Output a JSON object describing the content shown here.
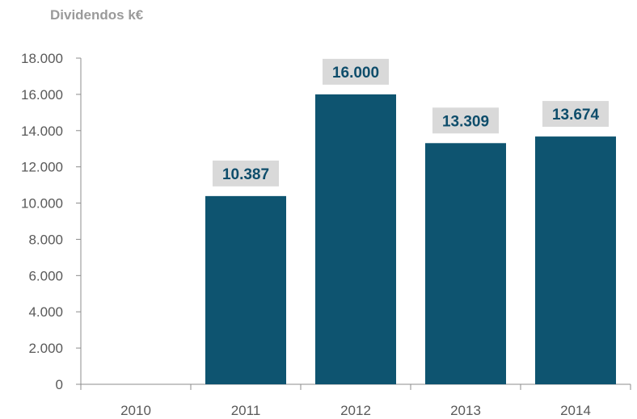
{
  "chart_data": {
    "type": "bar",
    "title": "Dividendos k€",
    "xlabel": "",
    "ylabel": "",
    "categories": [
      "2010",
      "2011",
      "2012",
      "2013",
      "2014"
    ],
    "values": [
      0,
      10387,
      16000,
      13309,
      13674
    ],
    "data_labels": [
      "",
      "10.387",
      "16.000",
      "13.309",
      "13.674"
    ],
    "ylim": [
      0,
      18000
    ],
    "y_ticks": [
      0,
      2000,
      4000,
      6000,
      8000,
      10000,
      12000,
      14000,
      16000,
      18000
    ],
    "y_tick_labels": [
      "0",
      "2.000",
      "4.000",
      "6.000",
      "8.000",
      "10.000",
      "12.000",
      "14.000",
      "16.000",
      "18.000"
    ],
    "grid": false,
    "legend": "none",
    "colors": {
      "bar": "#0e5470",
      "label_bg": "#d9d9d9",
      "label_text": "#0e4d6b",
      "axis": "#8c8c8c",
      "tick_text": "#595959",
      "title": "#9a9a9a"
    }
  }
}
